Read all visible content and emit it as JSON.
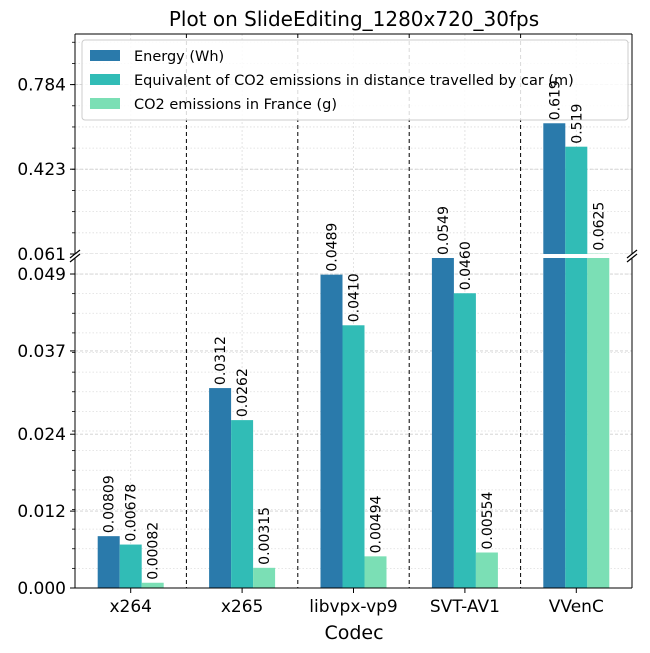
{
  "chart_data": {
    "type": "bar",
    "title": "Plot on SlideEditing_1280x720_30fps",
    "xlabel": "Codec",
    "ylabel": "",
    "categories": [
      "x264",
      "x265",
      "libvpx-vp9",
      "SVT-AV1",
      "VVenC"
    ],
    "series": [
      {
        "name": "Energy (Wh)",
        "color": "#2a7aab",
        "values": [
          0.00809,
          0.0312,
          0.0489,
          0.0549,
          0.619
        ],
        "labels": [
          "0.00809",
          "0.0312",
          "0.0489",
          "0.0549",
          "0.619"
        ]
      },
      {
        "name": "Equivalent of CO2 emissions in distance travelled by car (m)",
        "color": "#31bcb6",
        "values": [
          0.00678,
          0.0262,
          0.041,
          0.046,
          0.519
        ],
        "labels": [
          "0.00678",
          "0.0262",
          "0.0410",
          "0.0460",
          "0.519"
        ]
      },
      {
        "name": "CO2 emissions in France (g)",
        "color": "#7bdfb5",
        "values": [
          0.00082,
          0.00315,
          0.00494,
          0.00554,
          0.0625
        ],
        "labels": [
          "0.00082",
          "0.00315",
          "0.00494",
          "0.00554",
          "0.0625"
        ]
      }
    ],
    "broken_y_axis": true,
    "lower_ylim": [
      0,
      0.0515
    ],
    "upper_ylim": [
      0.061,
      1.0
    ],
    "lower_yticks": [
      "0.000",
      "0.012",
      "0.024",
      "0.037",
      "0.049"
    ],
    "upper_yticks": [
      "0.061",
      "0.423",
      "0.784"
    ],
    "grid": true,
    "legend_position": "top"
  }
}
